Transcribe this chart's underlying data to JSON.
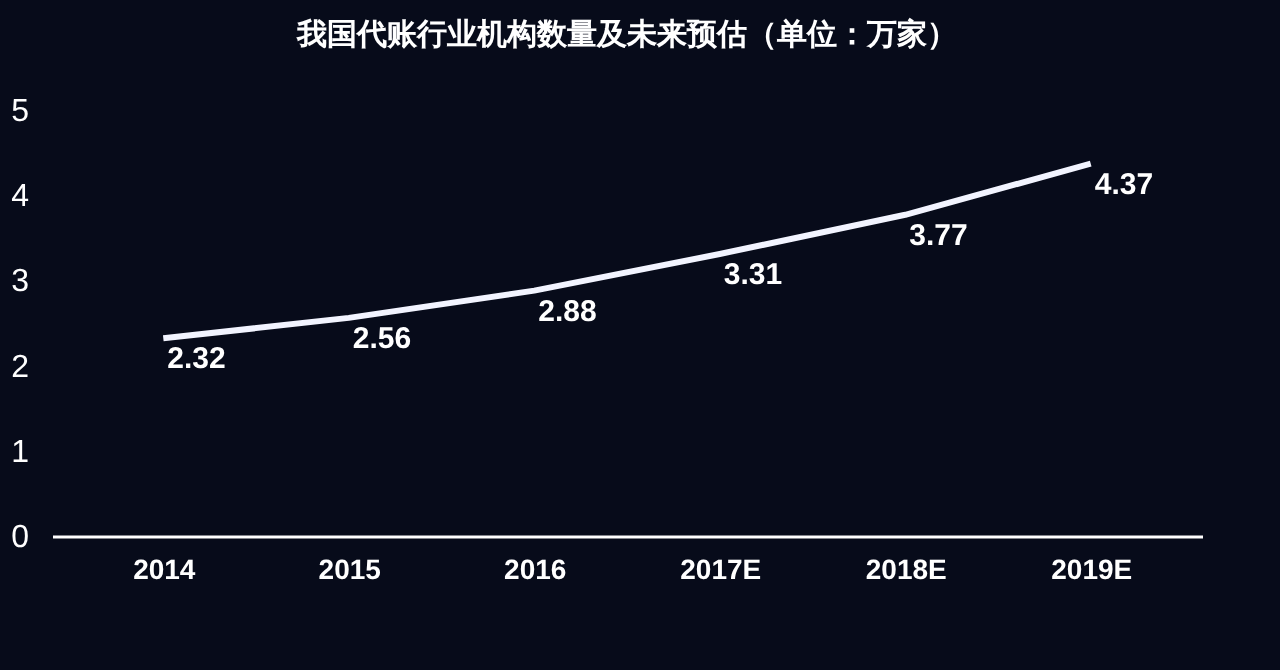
{
  "chart_data": {
    "type": "line",
    "title": "我国代账行业机构数量及未来预估（单位：万家）",
    "categories": [
      "2014",
      "2015",
      "2016",
      "2017E",
      "2018E",
      "2019E"
    ],
    "series": [
      {
        "color": "#f2f4ff",
        "values": [
          2.32,
          2.56,
          2.88,
          3.31,
          3.77,
          4.37
        ]
      }
    ],
    "ylim": [
      0,
      5
    ],
    "yticks": [
      0,
      1,
      2,
      3,
      4,
      5
    ],
    "grid": false,
    "marker": "none",
    "data_labels": true
  }
}
